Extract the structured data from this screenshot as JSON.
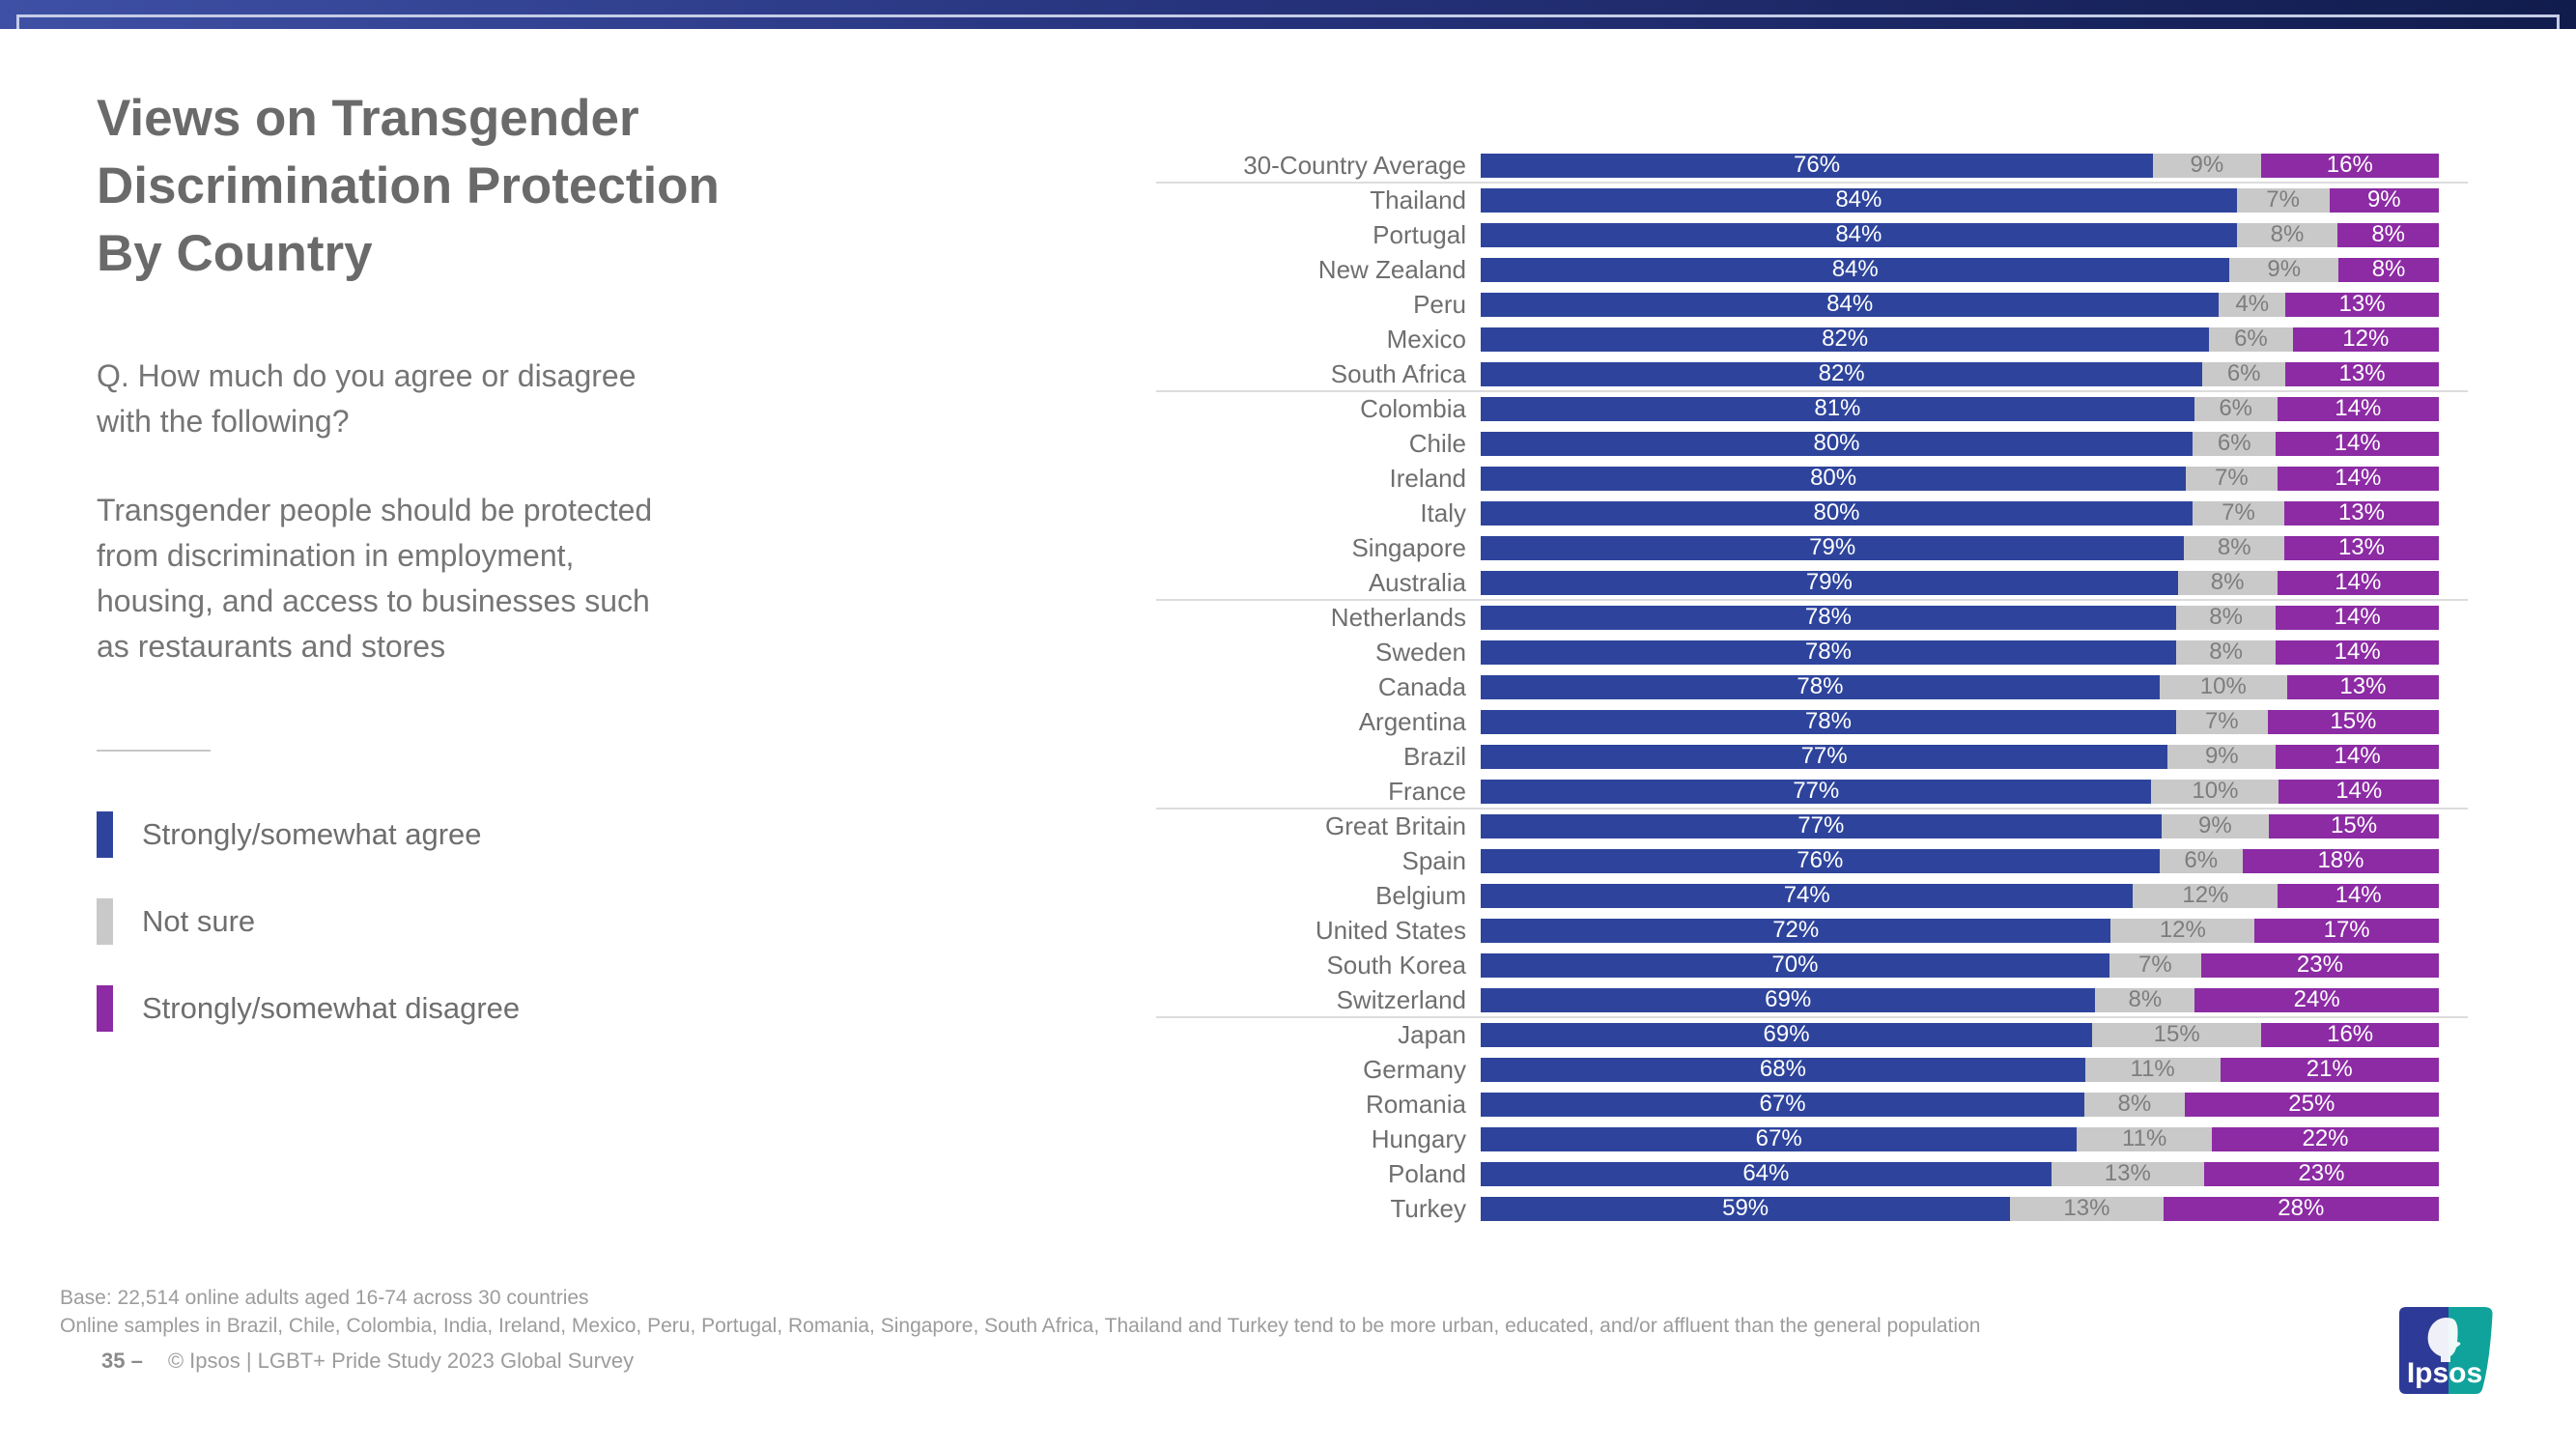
{
  "title": {
    "lines": [
      "Views on Transgender",
      "Discrimination Protection",
      "By Country"
    ]
  },
  "question": {
    "lines": [
      "Q. How much do you agree or disagree",
      "with the following?"
    ]
  },
  "statement": {
    "lines": [
      "Transgender people should be protected",
      "from discrimination in employment,",
      "housing, and access to businesses such",
      "as restaurants and stores"
    ]
  },
  "legend": [
    {
      "label": "Strongly/somewhat agree",
      "color": "#2E449C"
    },
    {
      "label": "Not sure",
      "color": "#C9C9C9"
    },
    {
      "label": "Strongly/somewhat disagree",
      "color": "#8C2BA4"
    }
  ],
  "chart_data": {
    "type": "bar",
    "orientation": "horizontal",
    "stacked": true,
    "value_suffix": "%",
    "xlim": [
      0,
      100
    ],
    "colors": {
      "agree": "#2E449C",
      "gray": "#C9C9C9",
      "purple": "#8C2BA4"
    },
    "categories": [
      "30-Country Average",
      "Thailand",
      "Portugal",
      "New Zealand",
      "Peru",
      "Mexico",
      "South Africa",
      "Colombia",
      "Chile",
      "Ireland",
      "Italy",
      "Singapore",
      "Australia",
      "Netherlands",
      "Sweden",
      "Canada",
      "Argentina",
      "Brazil",
      "France",
      "Great Britain",
      "Spain",
      "Belgium",
      "United States",
      "South Korea",
      "Switzerland",
      "Japan",
      "Germany",
      "Romania",
      "Hungary",
      "Poland",
      "Turkey"
    ],
    "series": [
      {
        "name": "Strongly/somewhat agree",
        "values": [
          76,
          84,
          84,
          84,
          84,
          82,
          82,
          81,
          80,
          80,
          80,
          79,
          79,
          78,
          78,
          78,
          78,
          77,
          77,
          77,
          76,
          74,
          72,
          70,
          69,
          69,
          68,
          67,
          67,
          64,
          59
        ]
      },
      {
        "name": "Not sure",
        "values": [
          9,
          7,
          8,
          9,
          4,
          6,
          6,
          6,
          6,
          7,
          7,
          8,
          8,
          8,
          8,
          10,
          7,
          9,
          10,
          9,
          6,
          12,
          12,
          7,
          8,
          15,
          11,
          8,
          11,
          13,
          13
        ]
      },
      {
        "name": "Strongly/somewhat disagree",
        "values": [
          16,
          9,
          8,
          8,
          13,
          12,
          13,
          14,
          14,
          14,
          13,
          13,
          14,
          14,
          14,
          13,
          15,
          14,
          14,
          15,
          18,
          14,
          17,
          23,
          24,
          16,
          21,
          25,
          22,
          23,
          28
        ]
      }
    ],
    "separators_after_index": [
      0,
      6,
      12,
      18,
      24
    ]
  },
  "footer": {
    "base": "Base: 22,514 online adults aged 16-74 across 30 countries",
    "note": "Online samples in Brazil, Chile, Colombia, India, Ireland, Mexico, Peru, Portugal, Romania, Singapore, South Africa, Thailand and Turkey tend to be more urban, educated, and/or affluent than the general population",
    "page_label": "35 –",
    "copyright": "© Ipsos | LGBT+ Pride Study 2023 Global Survey"
  },
  "logo": {
    "text": "Ipsos",
    "blue": "#2E3A97",
    "teal": "#0FA39B"
  }
}
